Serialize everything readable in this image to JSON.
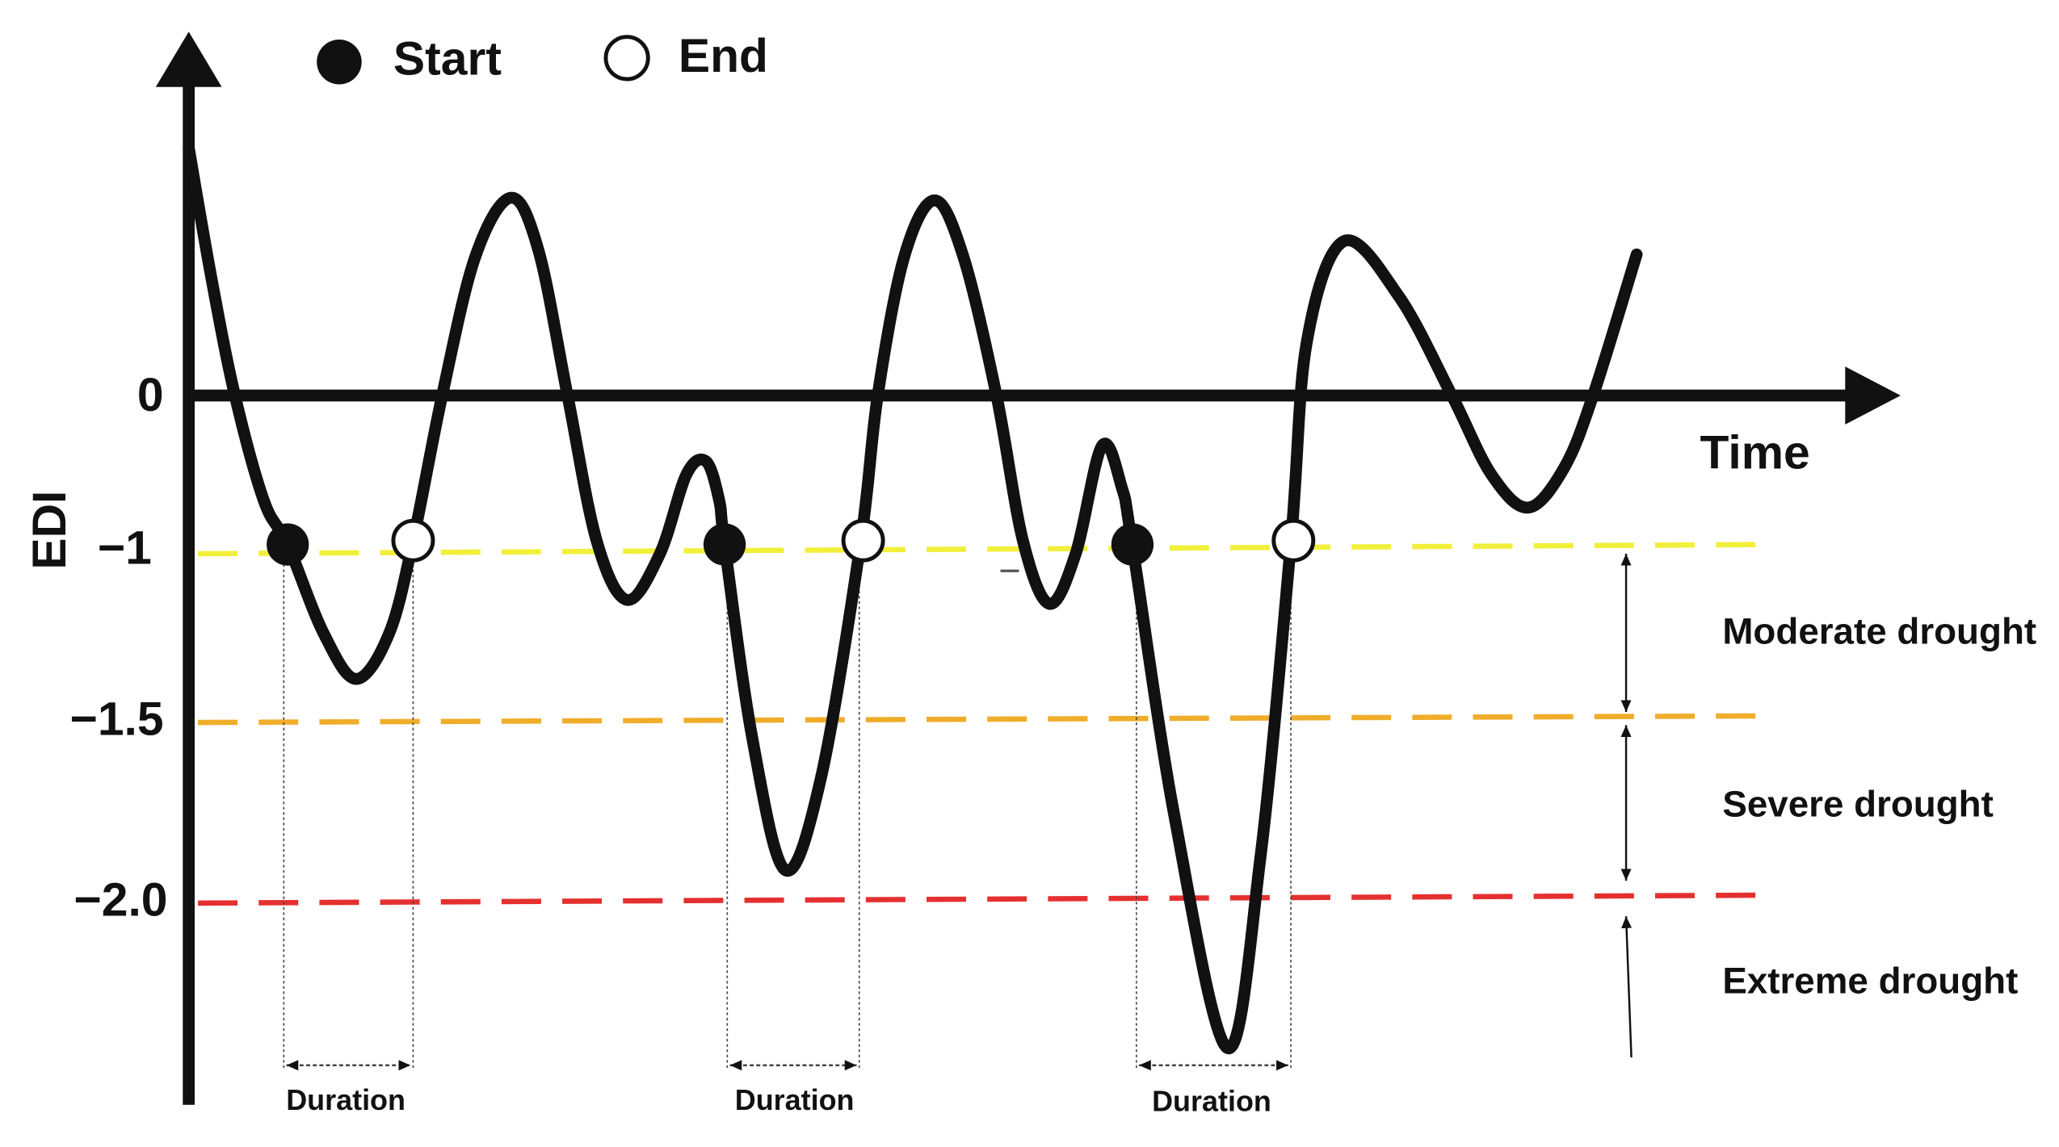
{
  "legend": {
    "start": "Start",
    "end": "End"
  },
  "axes": {
    "y_label": "EDI",
    "x_label": "Time",
    "tick_labels": [
      "0",
      "−1",
      "−1.5",
      "−2.0"
    ]
  },
  "durations": [
    "Duration",
    "Duration",
    "Duration"
  ],
  "classes": [
    "Moderate drought",
    "Severe drought",
    "Extreme drought"
  ]
}
